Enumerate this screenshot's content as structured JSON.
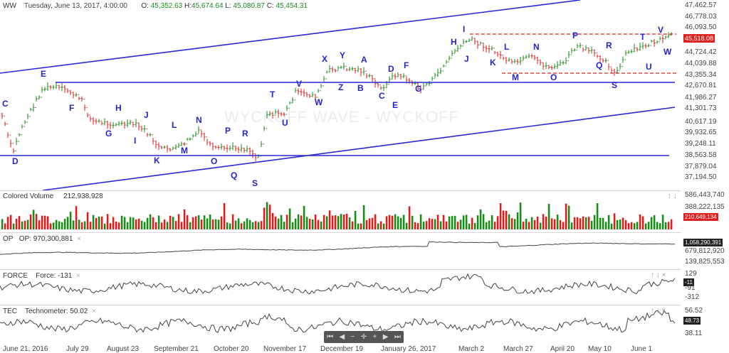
{
  "header": {
    "symbol": "WW",
    "datetime": "Tuesday, June 13, 2017, 4:00:00",
    "o_label": "O:",
    "o_value": "45,352.63",
    "h_label": "H:",
    "h_value": "45,674.64",
    "l_label": "L:",
    "l_value": "45,080.87",
    "c_label": "C:",
    "c_value": "45,454.31"
  },
  "watermark": "WYCKOFF WAVE - WYCKOFF",
  "price_axis": [
    "47,462.57",
    "46,778.03",
    "46,093.50",
    "45,518.08",
    "44,724.42",
    "44,039.88",
    "43,355.34",
    "42,670.81",
    "41,986.27",
    "41,301.73",
    "40,617.19",
    "39,932.65",
    "39,248.11",
    "38,563.58",
    "37,879.04",
    "37,194.50"
  ],
  "price_tag": "45,518.08",
  "price_tag_color": "#e02020",
  "wave_labels": [
    "C",
    "D",
    "E",
    "F",
    "G",
    "H",
    "I",
    "J",
    "K",
    "L",
    "M",
    "N",
    "O",
    "P",
    "Q",
    "R",
    "S",
    "T",
    "U",
    "V",
    "W",
    "X",
    "Y",
    "Z",
    "A",
    "B",
    "C",
    "D",
    "E",
    "F",
    "G",
    "H",
    "I",
    "J",
    "K",
    "L",
    "M",
    "N",
    "O",
    "P",
    "Q",
    "R",
    "S",
    "T",
    "U",
    "V",
    "W"
  ],
  "volume": {
    "title": "Colored Volume",
    "value": "212,938,928",
    "axis": [
      "586,443,740",
      "388,222,135",
      "210,649,134"
    ],
    "tag_color": "#e02020"
  },
  "op": {
    "title": "OP",
    "label": "OP: 970,300,881",
    "axis": [
      "1,058,290,391",
      "679,812,920",
      "139,825,553"
    ],
    "tag_color": "#222"
  },
  "force": {
    "title": "FORCE",
    "label": "Force: -131",
    "axis": [
      "129",
      "-11",
      "-91",
      "-312"
    ],
    "tag_color": "#222"
  },
  "tec": {
    "title": "TEC",
    "label": "Technometer: 50.02",
    "axis": [
      "56.52",
      "48.73",
      "38.11"
    ],
    "tag_color": "#222"
  },
  "dates": [
    "June 21, 2016",
    "July 29",
    "August 23",
    "September 21",
    "October 20",
    "November 17",
    "December 19",
    "January 26, 2017",
    "March 2",
    "March 27",
    "April 20",
    "May 10",
    "June 1"
  ],
  "navigator": [
    "⏮",
    "◀",
    "−",
    "✛",
    "+",
    "▶",
    "⏭"
  ],
  "close_glyph": "×",
  "colors": {
    "up": "#1a8a1a",
    "down": "#d42020",
    "trendline": "#2828d8",
    "label": "#2424cc",
    "resistance": "#e02020"
  }
}
